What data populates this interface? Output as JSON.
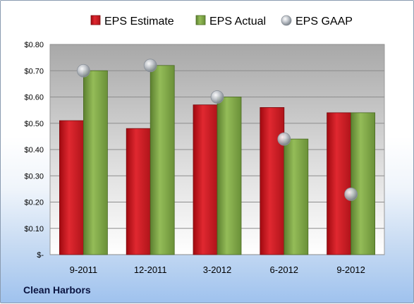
{
  "company": "Clean Harbors",
  "colors": {
    "estimate": "#c8141c",
    "actual": "#78a040",
    "gaap": "#b0b8c0"
  },
  "chart_data": {
    "type": "bar",
    "categories": [
      "9-2011",
      "12-2011",
      "3-2012",
      "6-2012",
      "9-2012"
    ],
    "series": [
      {
        "name": "EPS Estimate",
        "type": "bar",
        "values": [
          0.51,
          0.48,
          0.57,
          0.56,
          0.54
        ]
      },
      {
        "name": "EPS Actual",
        "type": "bar",
        "values": [
          0.7,
          0.72,
          0.6,
          0.44,
          0.54
        ]
      },
      {
        "name": "EPS GAAP",
        "type": "scatter",
        "values": [
          0.7,
          0.72,
          0.6,
          0.44,
          0.23
        ]
      }
    ],
    "ylim": [
      0,
      0.8
    ],
    "yticks": [
      0,
      0.1,
      0.2,
      0.3,
      0.4,
      0.5,
      0.6,
      0.7,
      0.8
    ],
    "ytick_labels": [
      "$-",
      "$0.10",
      "$0.20",
      "$0.30",
      "$0.40",
      "$0.50",
      "$0.60",
      "$0.70",
      "$0.80"
    ],
    "grid": true,
    "legend": "top"
  }
}
